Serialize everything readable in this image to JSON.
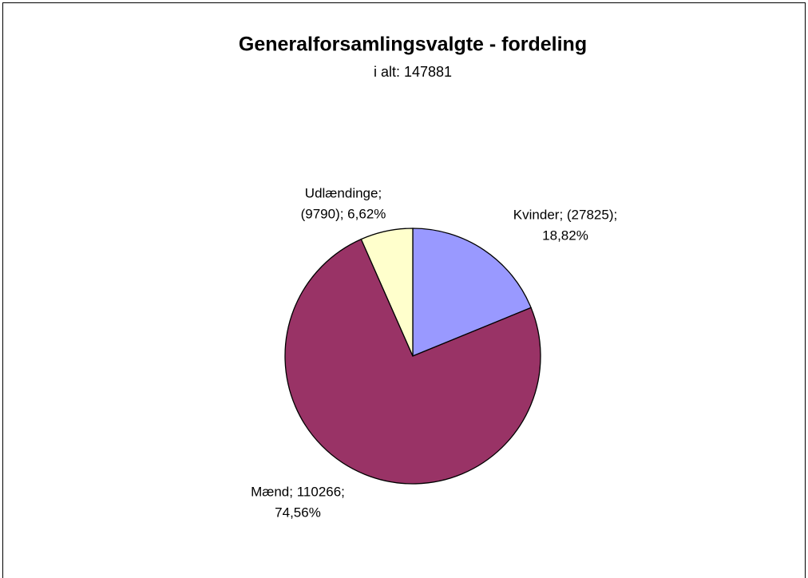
{
  "chart_data": {
    "type": "pie",
    "title": "Generalforsamlingsvalgte - fordeling",
    "subtitle": "i alt: 147881",
    "categories": [
      "Kvinder",
      "Mænd",
      "Udlændinge"
    ],
    "values": [
      27825,
      110266,
      9790
    ],
    "value_labels": [
      [
        "Kvinder; (27825);",
        "18,82%"
      ],
      [
        "Mænd; 110266;",
        "74,56%"
      ],
      [
        "Udlændinge;",
        "(9790); 6,62%"
      ]
    ],
    "colors": [
      "#9999ff",
      "#993366",
      "#ffffcc"
    ]
  }
}
